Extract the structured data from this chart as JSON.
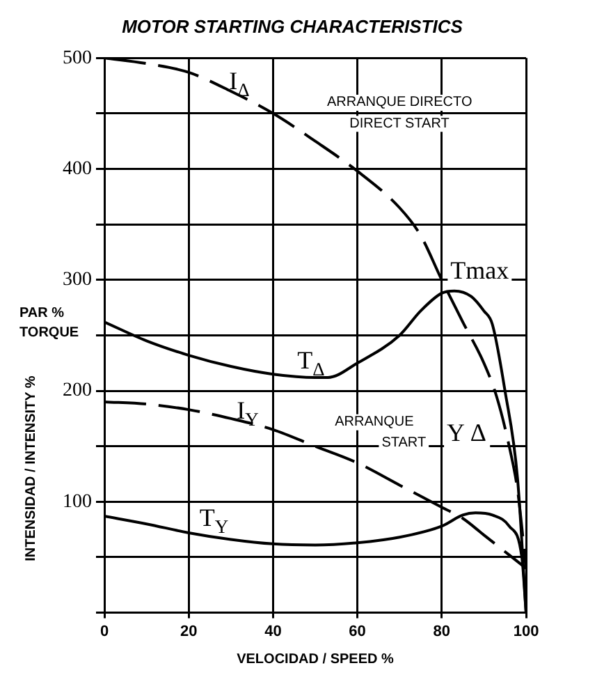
{
  "chart_data": {
    "type": "line",
    "title": "MOTOR STARTING CHARACTERISTICS",
    "xlabel": "VELOCIDAD / SPEED %",
    "ylabel": "INTENSIDAD / INTENSITY %",
    "xlim": [
      0,
      100
    ],
    "xticks": [
      0,
      20,
      40,
      60,
      80,
      100
    ],
    "ylim": [
      0,
      500
    ],
    "yticks": [
      {
        "value": 0,
        "label": null
      },
      {
        "value": 50,
        "label": null
      },
      100,
      {
        "value": 150,
        "label": null
      },
      200,
      {
        "value": 250,
        "label": null
      },
      300,
      {
        "value": 350,
        "label": null
      },
      400,
      {
        "value": 450,
        "label": null
      },
      500
    ],
    "grid": true,
    "legend": false,
    "marker": "none",
    "series": [
      {
        "name": "I$_{Δ}$",
        "color": "#000000",
        "line_style": "dashed",
        "x": [
          0,
          10,
          20,
          30,
          40,
          50,
          60,
          70,
          75,
          80,
          85,
          90,
          93,
          96,
          98,
          100
        ],
        "values": [
          500,
          495,
          487,
          470,
          450,
          425,
          398,
          365,
          340,
          300,
          262,
          225,
          195,
          150,
          110,
          40
        ]
      },
      {
        "name": "T$_{Δ}$",
        "color": "#000000",
        "line_style": "solid",
        "x": [
          0,
          10,
          20,
          30,
          40,
          50,
          53,
          60,
          70,
          75,
          80,
          83,
          87,
          90,
          92,
          95,
          98,
          100
        ],
        "values": [
          262,
          245,
          232,
          222,
          215,
          212,
          212,
          225,
          250,
          272,
          288,
          290,
          285,
          272,
          260,
          200,
          120,
          0
        ]
      },
      {
        "name": "I$_{Y}$",
        "color": "#000000",
        "line_style": "dashed",
        "x": [
          0,
          10,
          20,
          30,
          40,
          50,
          60,
          70,
          80,
          85,
          90,
          95,
          100
        ],
        "values": [
          190,
          188,
          183,
          175,
          165,
          150,
          135,
          115,
          95,
          85,
          70,
          55,
          40
        ]
      },
      {
        "name": "T$_{Y}$",
        "color": "#000000",
        "line_style": "solid",
        "x": [
          0,
          10,
          20,
          30,
          40,
          50,
          60,
          70,
          80,
          85,
          88,
          92,
          96,
          99,
          100
        ],
        "values": [
          87,
          80,
          72,
          66,
          62,
          61,
          63,
          68,
          78,
          88,
          90,
          88,
          78,
          50,
          0
        ]
      }
    ],
    "annotations": [
      "PAR %\nTORQUE",
      "ARRANQUE DIRECTO",
      "DIRECT START",
      "ARRANQUE",
      "START",
      "Y Δ",
      "Tmax"
    ]
  }
}
